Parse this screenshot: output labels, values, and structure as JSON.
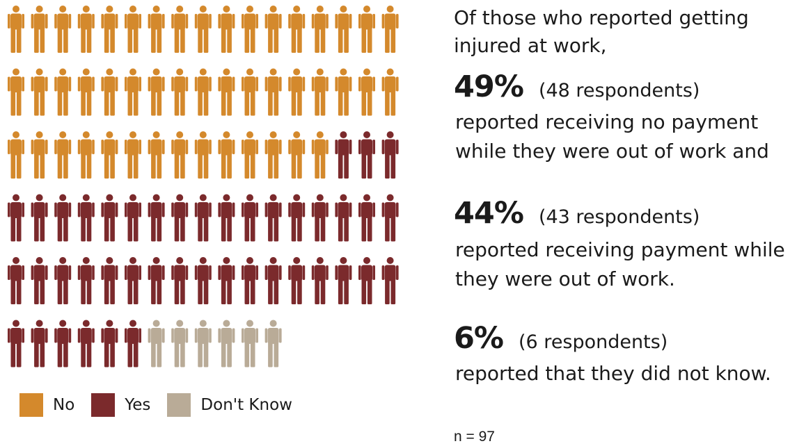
{
  "chart_data": {
    "type": "pictogram",
    "icons_per_row": 17,
    "categories": [
      "No",
      "Yes",
      "Don't Know"
    ],
    "counts": [
      48,
      43,
      6
    ],
    "total": 97,
    "colors": [
      "#d4892c",
      "#7b2a2c",
      "#b9ab97"
    ]
  },
  "legend": [
    {
      "label": "No",
      "color": "#d4892c"
    },
    {
      "label": "Yes",
      "color": "#7b2a2c"
    },
    {
      "label": "Don't Know",
      "color": "#b9ab97"
    }
  ],
  "intro": "Of those who reported getting injured at work,",
  "stats": [
    {
      "pct": "49%",
      "count": "(48 respondents)",
      "desc": "reported receiving no payment while they were out of work and"
    },
    {
      "pct": "44%",
      "count": "(43 respondents)",
      "desc": "reported receiving payment while they were out of work."
    },
    {
      "pct": "6%",
      "count": "(6 respondents)",
      "desc": "reported that they did not know."
    }
  ],
  "note": "n = 97"
}
